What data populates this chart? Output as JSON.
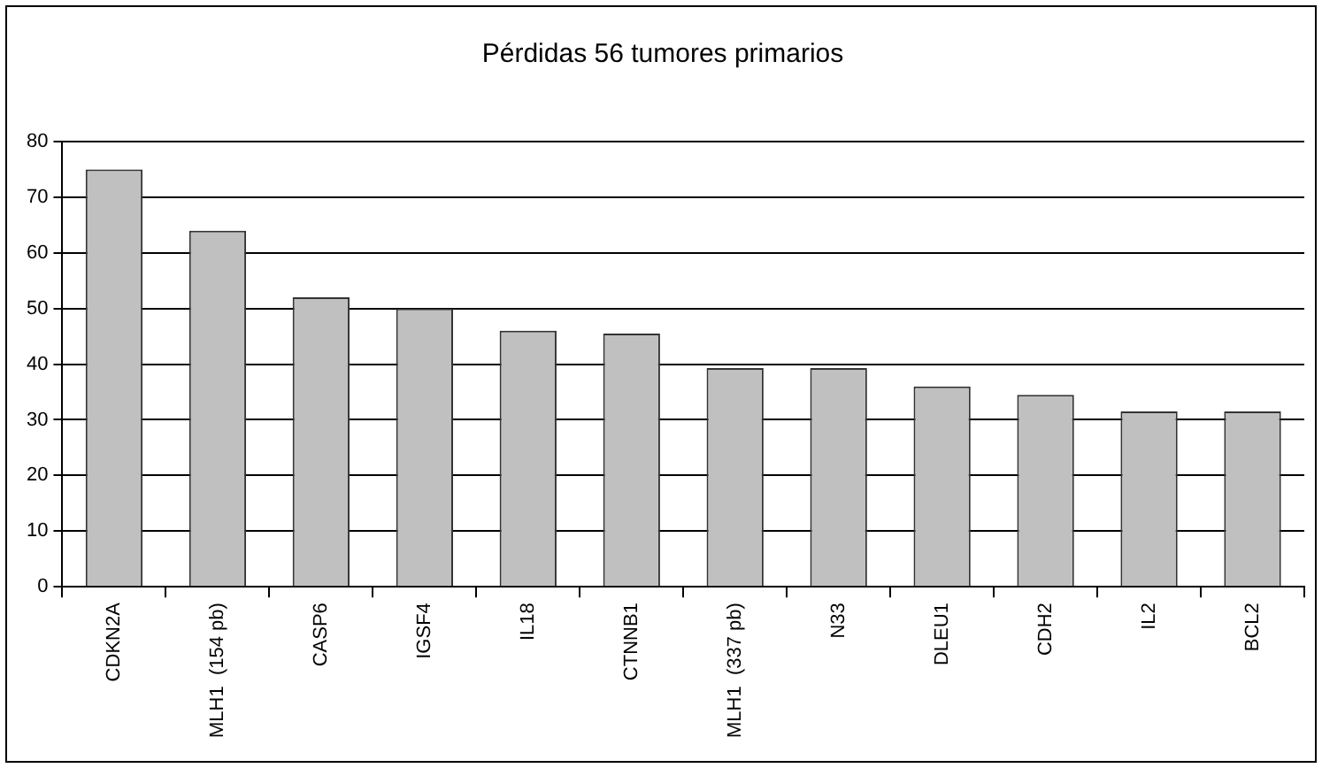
{
  "chart_data": {
    "type": "bar",
    "title": "Pérdidas 56 tumores primarios",
    "categories": [
      "CDKN2A",
      "MLH1  (154 pb)",
      "CASP6",
      "IGSF4",
      "IL18",
      "CTNNB1",
      "MLH1  (337 pb)",
      "N33",
      "DLEU1",
      "CDH2",
      "IL2",
      "BCL2"
    ],
    "values": [
      75,
      64,
      52,
      50,
      46,
      45.5,
      39.3,
      39.3,
      36,
      34.5,
      31.5,
      31.5
    ],
    "color": "#c0c0c0",
    "ylim": [
      0,
      80
    ],
    "yticks": [
      0,
      10,
      20,
      30,
      40,
      50,
      60,
      70,
      80
    ],
    "grid": "y",
    "legend": false
  }
}
